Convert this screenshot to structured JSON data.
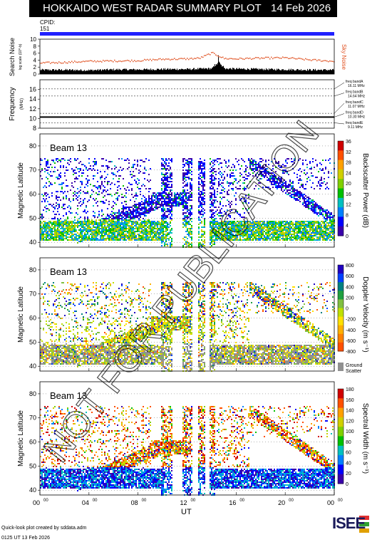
{
  "header": {
    "title": "HOKKAIDO WEST RADAR SUMMARY PLOT",
    "date": "14 Feb 2026",
    "cpid_label": "CPID:",
    "cpid_value": "151"
  },
  "colors": {
    "header_bg": "#000000",
    "header_text": "#ffffff",
    "cpid_bar": "#2020ff",
    "sky_noise": "#e05020",
    "search_noise": "#000000",
    "watermark": "#000000"
  },
  "watermark": "NOT FOR PUBLICATION",
  "footer": {
    "credit": "Quick-look plot created by sddata.adm",
    "timestamp": "0125 UT 13 Feb 2026",
    "logo": "ISEE"
  },
  "chart_data": [
    {
      "type": "line",
      "panel": "noise",
      "ylabel": "Search Noise",
      "ylabel_sub": "log scale (10^-b)",
      "right_label": "Sky Noise",
      "yticks": [
        "0",
        "2",
        "4",
        "6",
        "8",
        "10"
      ],
      "ylim": [
        0,
        10
      ],
      "series": [
        {
          "name": "Sky Noise",
          "x": [
            0,
            2,
            4,
            6,
            8,
            10,
            12,
            13,
            14,
            15,
            16,
            18,
            20,
            22,
            24
          ],
          "values": [
            3.1,
            3.3,
            3.6,
            3.7,
            3.8,
            4.2,
            4.3,
            4.5,
            6.0,
            4.4,
            4.3,
            4.5,
            4.6,
            4.0,
            3.6
          ]
        },
        {
          "name": "Search Noise",
          "x": [
            0,
            2,
            4,
            6,
            8,
            10,
            12,
            14,
            14.6,
            15,
            16,
            18,
            20,
            22,
            24
          ],
          "values": [
            1.2,
            1.2,
            1.1,
            1.3,
            1.3,
            1.4,
            1.4,
            1.6,
            3.4,
            1.6,
            1.5,
            1.4,
            1.3,
            1.2,
            1.2
          ]
        }
      ]
    },
    {
      "type": "line",
      "panel": "frequency",
      "ylabel": "Frequency",
      "yunit": "(MHz)",
      "yticks": [
        "8",
        "10",
        "12",
        "14",
        "16"
      ],
      "ylim": [
        8,
        18
      ],
      "bands": [
        {
          "label": "freq bandA",
          "freq": "16.11 MHz",
          "value": 16.11
        },
        {
          "label": "freq bandB",
          "freq": "14.64 MHz",
          "value": 14.64
        },
        {
          "label": "freq bandC",
          "freq": "11.07 MHz",
          "value": 11.07
        },
        {
          "label": "freq bandD",
          "freq": "10.30 MHz",
          "value": 10.3
        },
        {
          "label": "freq bandE",
          "freq": "9.11 MHz",
          "value": 9.11
        }
      ],
      "series": [
        {
          "x": [
            0,
            24
          ],
          "values": [
            10.3,
            10.3
          ]
        }
      ]
    },
    {
      "type": "heatmap",
      "panel": "power",
      "beam": "Beam 13",
      "ylabel": "Magnetic Latitude",
      "yticks": [
        "40",
        "50",
        "60",
        "70",
        "80"
      ],
      "ylim": [
        38,
        85
      ],
      "colorbar_label": "Backscatter Power (dB)",
      "colorbar_ticks": [
        "0",
        "4",
        "8",
        "12",
        "16",
        "20",
        "24",
        "28",
        "32",
        "36"
      ],
      "colorbar_range": [
        0,
        36
      ]
    },
    {
      "type": "heatmap",
      "panel": "velocity",
      "beam": "Beam 13",
      "ylabel": "Magnetic Latitude",
      "yticks": [
        "40",
        "50",
        "60",
        "70",
        "80"
      ],
      "ylim": [
        38,
        85
      ],
      "colorbar_label": "Doppler Velocity (m s⁻¹)",
      "colorbar_ticks": [
        "800",
        "600",
        "400",
        "200",
        "0",
        "-200",
        "-400",
        "-600",
        "-800"
      ],
      "colorbar_range": [
        -800,
        800
      ],
      "ground_scatter_label": "Ground Scatter"
    },
    {
      "type": "heatmap",
      "panel": "width",
      "beam": "Beam 13",
      "ylabel": "Magnetic Latitude",
      "yticks": [
        "40",
        "50",
        "60",
        "70",
        "80"
      ],
      "ylim": [
        38,
        85
      ],
      "colorbar_label": "Spectral Width (m s⁻¹)",
      "colorbar_ticks": [
        "0",
        "20",
        "40",
        "60",
        "80",
        "100",
        "120",
        "140",
        "160",
        "180"
      ],
      "colorbar_range": [
        0,
        180
      ]
    }
  ],
  "x_axis": {
    "label": "UT",
    "ticks": [
      "00",
      "04",
      "08",
      "12",
      "16",
      "20",
      "00"
    ],
    "tick_sup": "00",
    "range_hours": [
      0,
      24
    ]
  }
}
